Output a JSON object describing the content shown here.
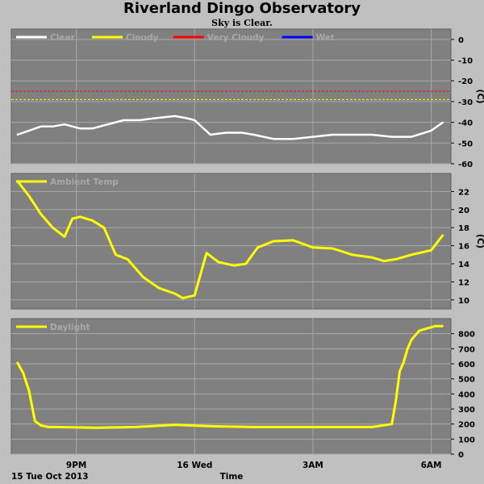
{
  "title": "Riverland Dingo Observatory",
  "subtitle": "Sky is Clear.",
  "colors": {
    "page_background": "#c0c0c0",
    "plot_background": "#808080",
    "grid": "#a8a8a8",
    "clear": "#ffffff",
    "cloudy": "#ffff00",
    "very_cloudy": "#ff0000",
    "wet": "#0000ff",
    "ambient": "#ffff00",
    "daylight": "#ffff00"
  },
  "chart_data": [
    {
      "type": "line",
      "ylabel": "(C)",
      "ylim": [
        -60,
        5
      ],
      "yticks": [
        0,
        -10,
        -20,
        -30,
        -40,
        -50,
        -60
      ],
      "legend": [
        "Clear",
        "Cloudy",
        "Very Cloudy",
        "Wet"
      ],
      "legend_placement": "top-left",
      "grid": true,
      "thresholds": [
        {
          "name": "Very Cloudy",
          "value": -25,
          "color": "#ff0000"
        },
        {
          "name": "Cloudy",
          "value": -29,
          "color": "#ffff00"
        }
      ],
      "series": [
        {
          "name": "Clear",
          "color": "#ffffff",
          "x": [
            0,
            0.3,
            0.6,
            0.9,
            1.2,
            1.6,
            1.9,
            2.3,
            2.7,
            3.1,
            3.5,
            4.0,
            4.3,
            4.5,
            4.9,
            5.3,
            5.7,
            6.0,
            6.5,
            7.0,
            7.5,
            8.0,
            8.5,
            9.0,
            9.5,
            10.0,
            10.5,
            10.8
          ],
          "values": [
            -46,
            -44,
            -42,
            -42,
            -41,
            -43,
            -43,
            -41,
            -39,
            -39,
            -38,
            -37,
            -38,
            -39,
            -46,
            -45,
            -45,
            -46,
            -48,
            -48,
            -47,
            -46,
            -46,
            -46,
            -47,
            -47,
            -44,
            -40
          ]
        }
      ]
    },
    {
      "type": "line",
      "ylabel": "(C)",
      "ylim": [
        9,
        24
      ],
      "yticks": [
        22,
        20,
        18,
        16,
        14,
        12,
        10
      ],
      "legend": [
        "Ambient Temp"
      ],
      "legend_placement": "top-left",
      "grid": true,
      "series": [
        {
          "name": "Ambient Temp",
          "color": "#ffff00",
          "x": [
            0,
            0.3,
            0.6,
            0.9,
            1.2,
            1.4,
            1.6,
            1.9,
            2.2,
            2.5,
            2.8,
            3.2,
            3.6,
            4.0,
            4.2,
            4.5,
            4.8,
            5.1,
            5.5,
            5.8,
            6.1,
            6.5,
            7.0,
            7.5,
            8.0,
            8.5,
            9.0,
            9.3,
            9.6,
            10.0,
            10.5,
            10.8
          ],
          "values": [
            23.2,
            21.5,
            19.5,
            18.0,
            17.0,
            19.0,
            19.2,
            18.8,
            18.0,
            15.0,
            14.5,
            12.5,
            11.3,
            10.7,
            10.2,
            10.5,
            15.2,
            14.2,
            13.8,
            14.0,
            15.8,
            16.5,
            16.6,
            15.8,
            15.7,
            15.0,
            14.7,
            14.3,
            14.5,
            15.0,
            15.5,
            17.2
          ]
        }
      ]
    },
    {
      "type": "line",
      "ylabel": "",
      "ylim": [
        0,
        900
      ],
      "yticks": [
        800,
        700,
        600,
        500,
        400,
        300,
        200,
        100,
        0
      ],
      "legend": [
        "Daylight"
      ],
      "legend_placement": "top-left",
      "grid": true,
      "series": [
        {
          "name": "Daylight",
          "color": "#ffff00",
          "x": [
            0,
            0.15,
            0.3,
            0.45,
            0.6,
            0.8,
            1.0,
            2.0,
            3.0,
            4.0,
            5.0,
            6.0,
            7.0,
            8.0,
            9.0,
            9.5,
            9.6,
            9.7,
            9.8,
            9.9,
            10.0,
            10.2,
            10.4,
            10.6,
            10.8
          ],
          "values": [
            610,
            540,
            420,
            220,
            190,
            180,
            180,
            175,
            180,
            195,
            185,
            180,
            180,
            180,
            180,
            200,
            350,
            550,
            610,
            700,
            760,
            820,
            835,
            850,
            850
          ]
        }
      ]
    }
  ],
  "x_axis": {
    "label": "Time",
    "date": "15 Tue Oct 2013",
    "ticks": [
      {
        "label": "9PM",
        "x": 1.5
      },
      {
        "label": "16 Wed",
        "x": 4.5
      },
      {
        "label": "3AM",
        "x": 7.5
      },
      {
        "label": "6AM",
        "x": 10.5
      }
    ],
    "gridlines": [
      1.5,
      4.5,
      7.5,
      10.5
    ]
  }
}
